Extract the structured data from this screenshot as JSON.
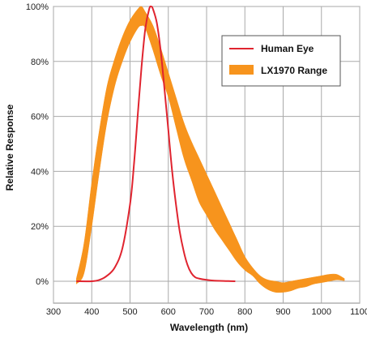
{
  "chart_data": {
    "type": "line",
    "xlabel": "Wavelength (nm)",
    "ylabel": "Relative Response",
    "xlim": [
      300,
      1100
    ],
    "ylim": [
      0,
      100
    ],
    "x_ticks": [
      "300",
      "400",
      "500",
      "600",
      "700",
      "800",
      "900",
      "1000",
      "1100"
    ],
    "y_ticks": [
      "0%",
      "20%",
      "40%",
      "60%",
      "80%",
      "100%"
    ],
    "grid": true,
    "legend_position": "top-right",
    "series": [
      {
        "name": "Human Eye",
        "type": "line",
        "color": "#e0242f",
        "x": [
          360,
          400,
          420,
          440,
          460,
          480,
          500,
          510,
          520,
          530,
          540,
          550,
          555,
          560,
          570,
          580,
          590,
          600,
          610,
          620,
          630,
          640,
          650,
          660,
          670,
          680,
          700,
          720,
          750,
          775
        ],
        "y": [
          0,
          0,
          0.5,
          2,
          5,
          12,
          28,
          42,
          60,
          78,
          92,
          99,
          100,
          99,
          94,
          84,
          70,
          55,
          40,
          28,
          18,
          11,
          6,
          3,
          1.5,
          1,
          0.5,
          0.2,
          0.1,
          0
        ]
      },
      {
        "name": "LX1970 Range",
        "type": "band",
        "color": "#f7941d",
        "x": [
          360,
          380,
          400,
          420,
          440,
          460,
          480,
          500,
          520,
          530,
          540,
          560,
          580,
          600,
          620,
          640,
          660,
          680,
          700,
          720,
          740,
          760,
          780,
          800,
          820,
          840,
          860,
          880,
          900,
          920,
          940,
          960,
          980,
          1000,
          1020,
          1040,
          1060
        ],
        "upper": [
          1,
          14,
          36,
          55,
          71,
          81,
          89,
          95,
          99,
          100,
          98,
          93,
          85,
          76,
          67,
          58,
          51,
          45,
          39,
          33,
          27,
          21,
          15,
          9,
          5,
          2,
          0.5,
          0,
          -0.5,
          0,
          0.5,
          1,
          1.5,
          2,
          2.5,
          2.5,
          1
        ],
        "lower": [
          -1,
          3,
          20,
          40,
          58,
          71,
          80,
          87,
          92,
          93,
          92,
          84,
          75,
          67,
          56,
          45,
          37,
          29,
          24,
          19,
          15,
          11,
          7,
          4,
          2,
          -1,
          -3,
          -4,
          -4,
          -3.5,
          -2.5,
          -2,
          -1,
          -0.5,
          0,
          0.5,
          0.2
        ]
      }
    ]
  }
}
